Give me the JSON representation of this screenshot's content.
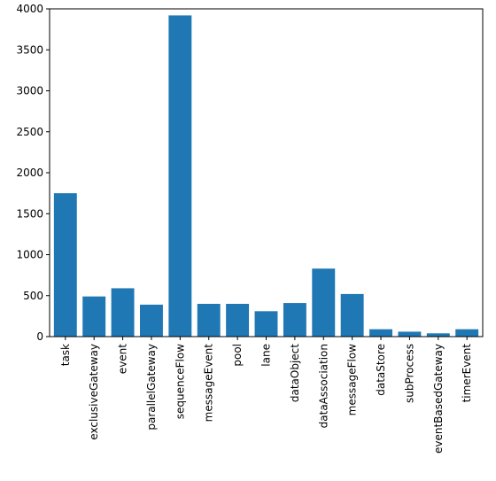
{
  "chart_data": {
    "type": "bar",
    "categories": [
      "task",
      "exclusiveGateway",
      "event",
      "parallelGateway",
      "sequenceFlow",
      "messageEvent",
      "pool",
      "lane",
      "dataObject",
      "dataAssociation",
      "messageFlow",
      "dataStore",
      "subProcess",
      "eventBasedGateway",
      "timerEvent"
    ],
    "values": [
      1750,
      490,
      590,
      390,
      3920,
      400,
      400,
      310,
      410,
      830,
      520,
      90,
      60,
      40,
      90
    ],
    "ylim": [
      0,
      4000
    ],
    "yticks": [
      0,
      500,
      1000,
      1500,
      2000,
      2500,
      3000,
      3500,
      4000
    ],
    "bar_color": "#1f77b4",
    "title": "",
    "xlabel": "",
    "ylabel": "",
    "grid": false,
    "legend": "none"
  }
}
